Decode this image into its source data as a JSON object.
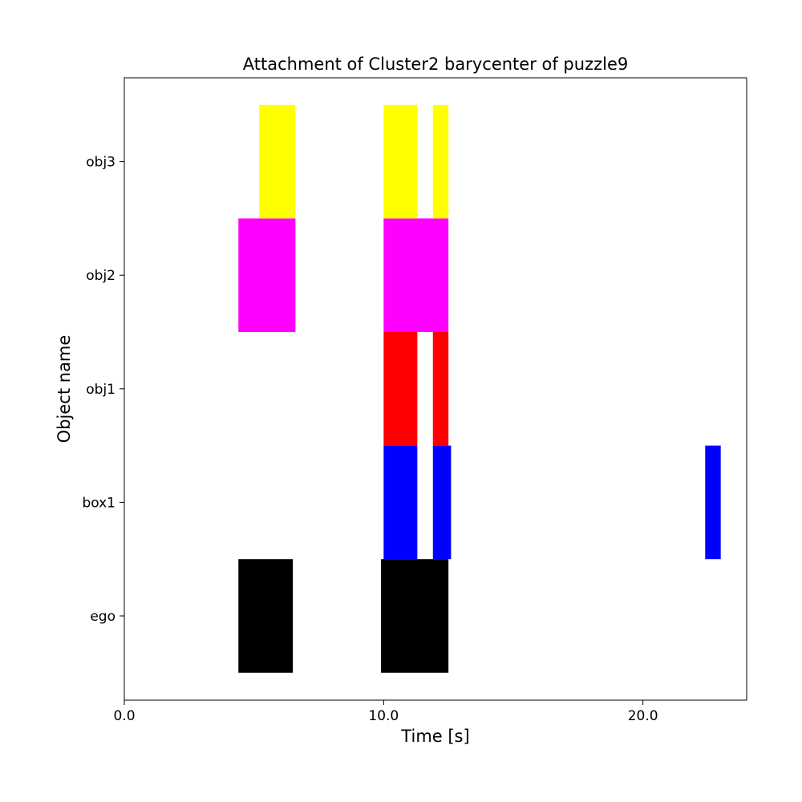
{
  "chart_data": {
    "type": "timeline",
    "title": "Attachment of Cluster2 barycenter of puzzle9",
    "xlabel": "Time [s]",
    "ylabel": "Object name",
    "xlim": [
      0,
      24
    ],
    "x_ticks": [
      0,
      10,
      20
    ],
    "x_tick_labels": [
      "0.0",
      "10.0",
      "20.0"
    ],
    "categories": [
      "ego",
      "box1",
      "obj1",
      "obj2",
      "obj3"
    ],
    "grid": false,
    "series": [
      {
        "category": "ego",
        "color": "#000000",
        "intervals": [
          [
            4.4,
            6.5
          ],
          [
            9.9,
            12.5
          ]
        ]
      },
      {
        "category": "box1",
        "color": "#0000ff",
        "intervals": [
          [
            10.0,
            11.3
          ],
          [
            11.9,
            12.6
          ],
          [
            22.4,
            23.0
          ]
        ]
      },
      {
        "category": "obj1",
        "color": "#ff0000",
        "intervals": [
          [
            10.0,
            11.3
          ],
          [
            11.9,
            12.5
          ]
        ]
      },
      {
        "category": "obj2",
        "color": "#ff00ff",
        "intervals": [
          [
            4.4,
            6.6
          ],
          [
            10.0,
            12.5
          ]
        ]
      },
      {
        "category": "obj3",
        "color": "#ffff00",
        "intervals": [
          [
            5.2,
            6.6
          ],
          [
            10.0,
            11.3
          ],
          [
            11.9,
            12.5
          ]
        ]
      }
    ]
  }
}
